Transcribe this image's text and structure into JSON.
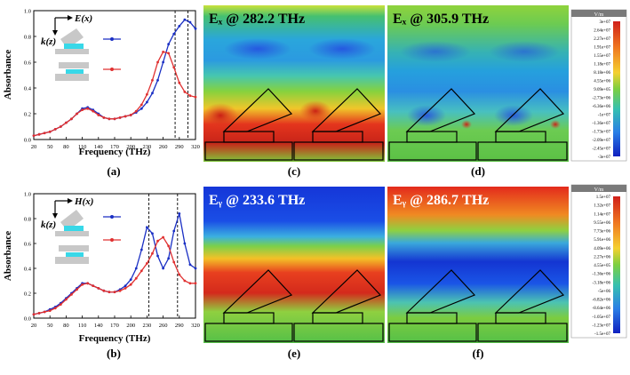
{
  "panels": {
    "a": "(a)",
    "b": "(b)",
    "c": "(c)",
    "d": "(d)",
    "e": "(e)",
    "f": "(f)"
  },
  "chart_data": [
    {
      "type": "line",
      "panel": "a",
      "xlabel": "Frequency (THz)",
      "ylabel": "Absorbance",
      "xlim": [
        20,
        320
      ],
      "ylim": [
        0,
        1.0
      ],
      "xticks": [
        "20",
        "50",
        "80",
        "110",
        "140",
        "170",
        "200",
        "230",
        "260",
        "290",
        "320"
      ],
      "yticks": [
        "0.0",
        "0.2",
        "0.4",
        "0.6",
        "0.8",
        "1.0"
      ],
      "legend": {
        "field": "E(x)",
        "wave": "k(z)"
      },
      "vlines": [
        282.2,
        305.9
      ],
      "colors": [
        "#1a2fc4",
        "#e03030"
      ],
      "series": [
        {
          "x": [
            20,
            30,
            40,
            50,
            60,
            70,
            80,
            90,
            100,
            110,
            120,
            130,
            140,
            150,
            160,
            170,
            180,
            190,
            200,
            210,
            220,
            230,
            240,
            250,
            260,
            270,
            280,
            290,
            300,
            310,
            320
          ],
          "values": [
            0.03,
            0.04,
            0.05,
            0.06,
            0.08,
            0.1,
            0.13,
            0.16,
            0.2,
            0.24,
            0.25,
            0.23,
            0.2,
            0.17,
            0.16,
            0.16,
            0.17,
            0.18,
            0.19,
            0.21,
            0.24,
            0.29,
            0.36,
            0.46,
            0.6,
            0.74,
            0.82,
            0.88,
            0.93,
            0.91,
            0.86
          ]
        },
        {
          "x": [
            20,
            30,
            40,
            50,
            60,
            70,
            80,
            90,
            100,
            110,
            120,
            130,
            140,
            150,
            160,
            170,
            180,
            190,
            200,
            210,
            220,
            230,
            240,
            250,
            260,
            270,
            280,
            290,
            300,
            310,
            320
          ],
          "values": [
            0.03,
            0.04,
            0.05,
            0.06,
            0.08,
            0.1,
            0.13,
            0.16,
            0.2,
            0.23,
            0.24,
            0.22,
            0.19,
            0.17,
            0.16,
            0.16,
            0.17,
            0.18,
            0.19,
            0.22,
            0.27,
            0.35,
            0.46,
            0.6,
            0.68,
            0.67,
            0.56,
            0.44,
            0.37,
            0.34,
            0.33
          ]
        }
      ]
    },
    {
      "type": "line",
      "panel": "b",
      "xlabel": "Frequency (THz)",
      "ylabel": "Absorbance",
      "xlim": [
        20,
        320
      ],
      "ylim": [
        0,
        1.0
      ],
      "xticks": [
        "20",
        "50",
        "80",
        "110",
        "140",
        "170",
        "200",
        "230",
        "260",
        "290",
        "320"
      ],
      "yticks": [
        "0.0",
        "0.2",
        "0.4",
        "0.6",
        "0.8",
        "1.0"
      ],
      "legend": {
        "field": "H(x)",
        "wave": "k(z)"
      },
      "vlines": [
        233.6,
        286.7
      ],
      "colors": [
        "#1a2fc4",
        "#e03030"
      ],
      "series": [
        {
          "x": [
            20,
            30,
            40,
            50,
            60,
            70,
            80,
            90,
            100,
            110,
            120,
            130,
            140,
            150,
            160,
            170,
            180,
            190,
            200,
            210,
            220,
            230,
            240,
            250,
            260,
            270,
            280,
            290,
            300,
            310,
            320
          ],
          "values": [
            0.03,
            0.04,
            0.05,
            0.07,
            0.09,
            0.12,
            0.16,
            0.2,
            0.24,
            0.28,
            0.28,
            0.26,
            0.24,
            0.22,
            0.21,
            0.21,
            0.23,
            0.26,
            0.31,
            0.4,
            0.55,
            0.73,
            0.68,
            0.5,
            0.4,
            0.48,
            0.7,
            0.84,
            0.6,
            0.43,
            0.4
          ]
        },
        {
          "x": [
            20,
            30,
            40,
            50,
            60,
            70,
            80,
            90,
            100,
            110,
            120,
            130,
            140,
            150,
            160,
            170,
            180,
            190,
            200,
            210,
            220,
            230,
            240,
            250,
            260,
            270,
            280,
            290,
            300,
            310,
            320
          ],
          "values": [
            0.03,
            0.04,
            0.05,
            0.06,
            0.08,
            0.11,
            0.15,
            0.19,
            0.23,
            0.27,
            0.28,
            0.26,
            0.24,
            0.22,
            0.21,
            0.21,
            0.22,
            0.24,
            0.27,
            0.32,
            0.38,
            0.44,
            0.52,
            0.62,
            0.65,
            0.58,
            0.45,
            0.35,
            0.3,
            0.28,
            0.28
          ]
        }
      ]
    }
  ],
  "field_maps": [
    {
      "panel": "c",
      "title": "Eₓ @ 282.2 THz"
    },
    {
      "panel": "d",
      "title": "Eₓ @ 305.9 THz"
    },
    {
      "panel": "e",
      "title": "Eᵧ @ 233.6 THz"
    },
    {
      "panel": "f",
      "title": "Eᵧ @ 286.7 THz"
    }
  ],
  "colorbars": [
    {
      "unit": "V/m",
      "labels": [
        "3e+07",
        "2.64e+07",
        "2.27e+07",
        "1.91e+07",
        "1.55e+07",
        "1.18e+07",
        "8.18e+06",
        "4.55e+06",
        "9.09e+05",
        "-2.73e+06",
        "-6.36e+06",
        "-1e+07",
        "-1.36e+07",
        "-1.73e+07",
        "-2.09e+07",
        "-2.45e+07",
        "-3e+07"
      ]
    },
    {
      "unit": "V/m",
      "labels": [
        "1.5e+07",
        "1.32e+07",
        "1.14e+07",
        "9.55e+06",
        "7.73e+06",
        "5.91e+06",
        "4.09e+06",
        "2.27e+06",
        "4.55e+05",
        "-1.36e+06",
        "-3.18e+06",
        "-5e+06",
        "-6.82e+06",
        "-8.64e+06",
        "-1.05e+07",
        "-1.23e+07",
        "-1.5e+07"
      ]
    }
  ]
}
